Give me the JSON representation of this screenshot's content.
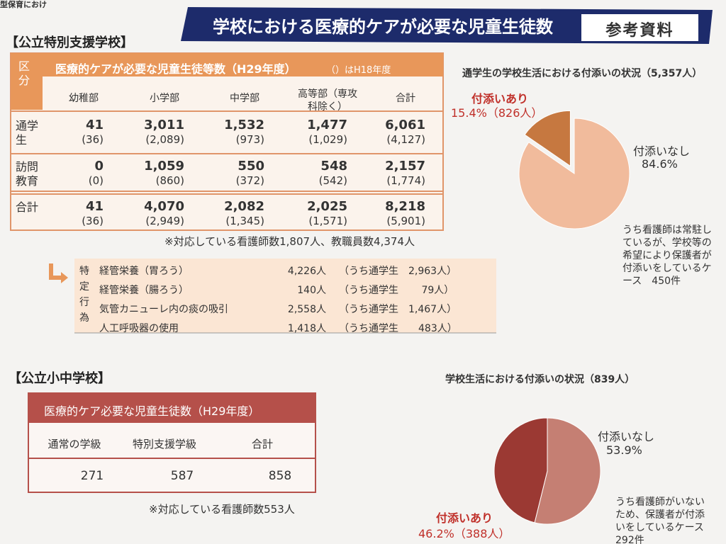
{
  "header": {
    "corner": "型保育におけ",
    "title": "学校における医療的ケアが必要な児童生徒数",
    "badge": "参考資料"
  },
  "special": {
    "heading": "【公立特別支援学校】",
    "table": {
      "corner": "区分",
      "caption": "医療的ケアが必要な児童生徒等数（H29年度）",
      "caption_note": "（）はH18年度",
      "columns": [
        "幼稚部",
        "小学部",
        "中学部",
        "高等部（専攻科除く）",
        "合計"
      ],
      "rows": [
        {
          "label": "通学生",
          "cells": [
            [
              "41",
              "(36)"
            ],
            [
              "3,011",
              "(2,089)"
            ],
            [
              "1,532",
              "(973)"
            ],
            [
              "1,477",
              "(1,029)"
            ],
            [
              "6,061",
              "(4,127)"
            ]
          ]
        },
        {
          "label": "訪問教育",
          "cells": [
            [
              "0",
              "(0)"
            ],
            [
              "1,059",
              "(860)"
            ],
            [
              "550",
              "(372)"
            ],
            [
              "548",
              "(542)"
            ],
            [
              "2,157",
              "(1,774)"
            ]
          ]
        },
        {
          "label": "合計",
          "cells": [
            [
              "41",
              "(36)"
            ],
            [
              "4,070",
              "(2,949)"
            ],
            [
              "2,082",
              "(1,345)"
            ],
            [
              "2,025",
              "(1,571)"
            ],
            [
              "8,218",
              "(5,901)"
            ]
          ]
        }
      ]
    },
    "note": "※対応している看護師数1,807人、教職員数4,374人",
    "acts": {
      "label": "特定行為",
      "rows": [
        [
          "経管栄養（胃ろう）",
          "4,226人",
          "（うち通学生　2,963人）"
        ],
        [
          "経管栄養（腸ろう）",
          "140人",
          "（うち通学生　　 79人）"
        ],
        [
          "気管カニューレ内の痰の吸引",
          "2,558人",
          "（うち通学生　1,467人）"
        ],
        [
          "人工呼吸器の使用",
          "1,418人",
          "（うち通学生　　483人）"
        ]
      ]
    },
    "pie": {
      "title": "通学生の学校生活における付添いの状況（5,357人）",
      "values": [
        15.4,
        84.6
      ],
      "names": [
        "付添いあり",
        "付添いなし"
      ],
      "labels": [
        "15.4%（826人）",
        "84.6%"
      ],
      "colors": [
        "#c67840",
        "#f1bb9c"
      ],
      "note": "うち看護師は常駐しているが、学校等の希望により保護者が付添いをしているケース　450件"
    }
  },
  "public": {
    "heading": "【公立小中学校】",
    "table": {
      "caption": "医療的ケア必要な児童生徒数（H29年度）",
      "columns": [
        "通常の学級",
        "特別支援学級",
        "合計"
      ],
      "cells": [
        "271",
        "587",
        "858"
      ]
    },
    "note": "※対応している看護師数553人",
    "pie": {
      "title": "学校生活における付添いの状況（839人）",
      "values": [
        53.9,
        46.2
      ],
      "names": [
        "付添いなし",
        "付添いあり"
      ],
      "labels": [
        "53.9%",
        "46.2%（388人）"
      ],
      "colors": [
        "#c57f73",
        "#9b3933"
      ],
      "note": "うち看護師がいないため、保護者が付添いをしているケース　292件"
    }
  }
}
